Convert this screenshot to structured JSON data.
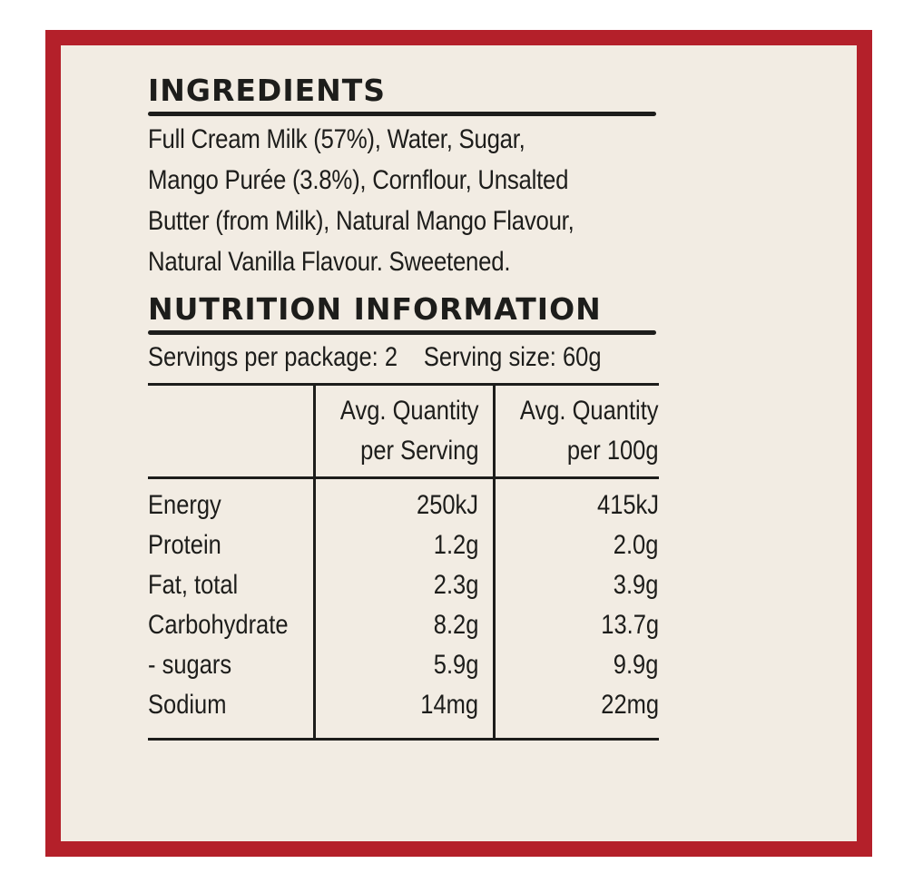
{
  "ingredients": {
    "heading": "INGREDIENTS",
    "lines": [
      "Full Cream Milk (57%), Water, Sugar,",
      "Mango Purée (3.8%), Cornflour, Unsalted",
      "Butter (from Milk), Natural Mango Flavour,",
      "Natural Vanilla Flavour. Sweetened."
    ]
  },
  "nutrition": {
    "heading": "NUTRITION INFORMATION",
    "servings_per_package": "Servings per package: 2",
    "serving_size": "Serving size: 60g",
    "columns": {
      "per_serving_line1": "Avg. Quantity",
      "per_serving_line2": "per Serving",
      "per_100g_line1": "Avg. Quantity",
      "per_100g_line2": "per 100g"
    },
    "rows": [
      {
        "label": "Energy",
        "per_serving": "250kJ",
        "per_100g": "415kJ"
      },
      {
        "label": "Protein",
        "per_serving": "1.2g",
        "per_100g": "2.0g"
      },
      {
        "label": "Fat, total",
        "per_serving": "2.3g",
        "per_100g": "3.9g"
      },
      {
        "label": "Carbohydrate",
        "per_serving": "8.2g",
        "per_100g": "13.7g"
      },
      {
        "label": "- sugars",
        "per_serving": "5.9g",
        "per_100g": "9.9g"
      },
      {
        "label": "Sodium",
        "per_serving": "14mg",
        "per_100g": "22mg"
      }
    ]
  },
  "colors": {
    "border": "#b4202a",
    "panel_background": "#f2ece3",
    "text": "#1d1d1b"
  }
}
